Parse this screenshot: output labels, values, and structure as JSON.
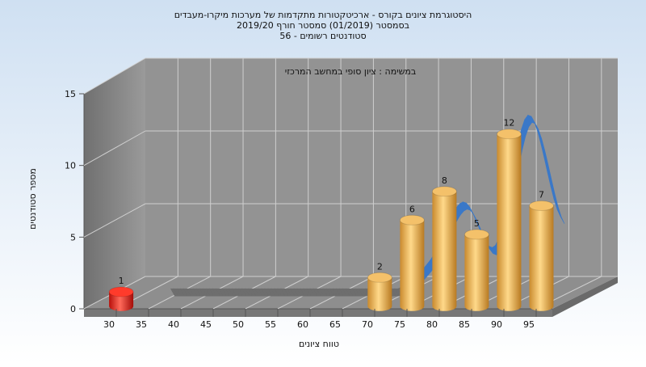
{
  "colors": {
    "background_top": "#cfe0f2",
    "background_bottom": "#ffffff",
    "wall": "#8c8c8c",
    "wall_dark": "#6f6f6f",
    "floor": "#9a9a9a",
    "grid": "#cfcfcf",
    "bar": "#e5a94a",
    "bar_low": "#e8221c",
    "ribbon": "#3a78c8",
    "ribbon_flat": "#6e6e6e"
  },
  "chart_data": {
    "type": "bar",
    "title_lines": [
      "היסטוגרמת ציונים בקורס - ארכיטקטורות מתקדמות של מערכות מיקרו-מעבדים",
      "בסמסטר  (01/2019)  סמסטר חורף 2019/20",
      "סטודנטים רשומים - 56"
    ],
    "annotation": "במשימה : ציון סופי במחשב המרכזי",
    "xlabel": "טווח ציונים",
    "ylabel": "מספר סטודנטים",
    "x_ticks": [
      "30",
      "35",
      "40",
      "45",
      "50",
      "55",
      "60",
      "65",
      "70",
      "75",
      "80",
      "85",
      "90",
      "95"
    ],
    "y_ticks": [
      "0",
      "5",
      "10",
      "15"
    ],
    "ylim": [
      0,
      15
    ],
    "bars": [
      {
        "x": 30,
        "value": 1,
        "label": "1",
        "low": true
      },
      {
        "x": 70,
        "value": 2,
        "label": "2",
        "low": false
      },
      {
        "x": 75,
        "value": 6,
        "label": "6",
        "low": false
      },
      {
        "x": 80,
        "value": 8,
        "label": "8",
        "low": false
      },
      {
        "x": 85,
        "value": 5,
        "label": "5",
        "low": false
      },
      {
        "x": 90,
        "value": 12,
        "label": "12",
        "low": false
      },
      {
        "x": 95,
        "value": 7,
        "label": "7",
        "low": false
      }
    ],
    "trend": {
      "x": [
        35,
        40,
        45,
        50,
        55,
        60,
        65,
        70,
        75,
        80,
        85,
        90,
        95
      ],
      "values": [
        0,
        0,
        0,
        0,
        0,
        0,
        0,
        0,
        2,
        6,
        3,
        12,
        5
      ]
    },
    "grid": true,
    "legend": "none"
  }
}
